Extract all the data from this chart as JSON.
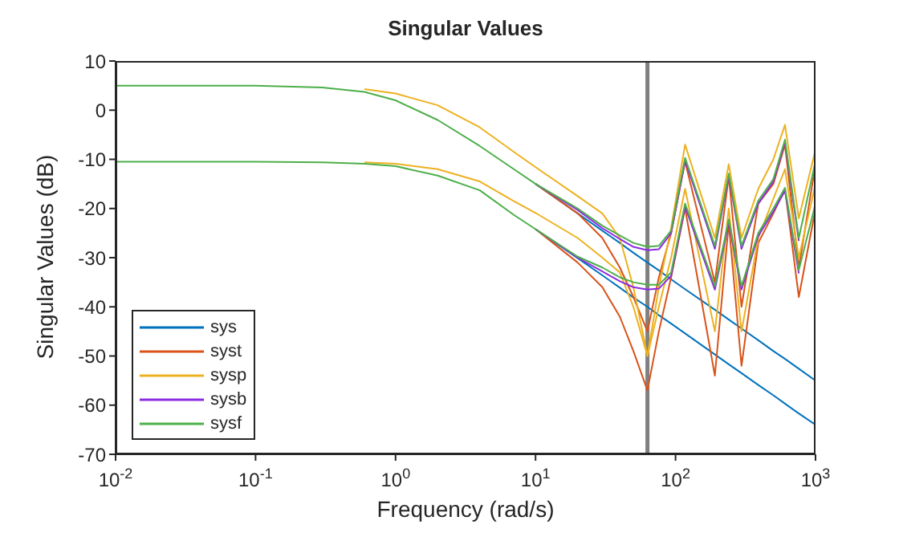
{
  "chart_data": {
    "type": "line",
    "title": "Singular Values",
    "xlabel": "Frequency (rad/s)",
    "ylabel": "Singular Values (dB)",
    "x": [
      0.01,
      0.1,
      0.3,
      0.6,
      1,
      2,
      4,
      7,
      10,
      20,
      30,
      40,
      50,
      63,
      76,
      93,
      117,
      191,
      240,
      296,
      390,
      500,
      605,
      760,
      1000
    ],
    "series": [
      {
        "name": "sys",
        "color": "#0072bd",
        "values": [
          null,
          null,
          null,
          null,
          null,
          null,
          null,
          null,
          -15,
          -21,
          -24.5,
          -27,
          -29,
          -31,
          -32.6,
          -34.4,
          -36.4,
          -40.6,
          -42.6,
          -44.4,
          -46.8,
          -49,
          -50.6,
          -52.6,
          -55
        ]
      },
      {
        "color": "#0072bd",
        "values": [
          null,
          null,
          null,
          null,
          null,
          null,
          null,
          null,
          -24.2,
          -30.1,
          -33.6,
          -36.1,
          -38.1,
          -40,
          -41.7,
          -43.4,
          -45.4,
          -49.7,
          -51.7,
          -53.5,
          -55.9,
          -58,
          -59.7,
          -61.7,
          -64
        ]
      },
      {
        "name": "syst",
        "color": "#d95319",
        "values": [
          null,
          null,
          null,
          null,
          null,
          null,
          null,
          null,
          -15,
          -21,
          -26,
          -32,
          -38,
          -45,
          -34,
          -25,
          -10.5,
          -35,
          -13.5,
          -40,
          -19,
          -15,
          -7,
          -32,
          -11
        ]
      },
      {
        "color": "#d95319",
        "values": [
          null,
          null,
          null,
          null,
          null,
          null,
          null,
          null,
          -24.2,
          -31,
          -36,
          -42,
          -49,
          -57,
          -45,
          -34,
          -20,
          -54,
          -23,
          -52,
          -27,
          -21,
          -16,
          -38,
          -20
        ]
      },
      {
        "name": "sysp",
        "color": "#edb120",
        "values": [
          null,
          null,
          null,
          4.3,
          3.4,
          1,
          -3.5,
          -8.5,
          -11.6,
          -17.5,
          -21,
          -26,
          -36,
          -50,
          -36,
          -24,
          -7,
          -26,
          -11,
          -26,
          -16,
          -10,
          -3,
          -22,
          -8
        ]
      },
      {
        "color": "#edb120",
        "values": [
          null,
          null,
          null,
          -10.6,
          -10.9,
          -12,
          -14.5,
          -18.5,
          -20.9,
          -26,
          -30,
          -33,
          -40,
          -50,
          -40,
          -30,
          -16,
          -45,
          -20,
          -45,
          -26,
          -18,
          -12,
          -30,
          -15
        ]
      },
      {
        "name": "sysb",
        "color": "#8c2be2",
        "values": [
          null,
          null,
          null,
          null,
          null,
          null,
          null,
          null,
          -15,
          -20.3,
          -24,
          -26.2,
          -27.8,
          -28.5,
          -28.3,
          -25,
          -10.2,
          -28.2,
          -13.4,
          -28.2,
          -19,
          -14.5,
          -6.5,
          -26.6,
          null
        ]
      },
      {
        "color": "#8c2be2",
        "values": [
          null,
          null,
          null,
          null,
          null,
          null,
          null,
          null,
          -24.2,
          -30,
          -32.8,
          -34.8,
          -36,
          -36.5,
          -36.3,
          -33.7,
          -19.6,
          -36.5,
          -22.8,
          -36.5,
          -25.6,
          -20.6,
          -16.4,
          -33.2,
          null
        ]
      },
      {
        "name": "sysf",
        "color": "#4daf4a",
        "values": [
          5,
          5,
          4.6,
          3.7,
          2,
          -2,
          -7.3,
          -12,
          -15,
          -20,
          -23.5,
          -25.5,
          -27,
          -27.8,
          -27.6,
          -24.5,
          -9.7,
          -27.6,
          -12.9,
          -27.6,
          -18.4,
          -14,
          -6,
          -26,
          -10.3
        ]
      },
      {
        "color": "#4daf4a",
        "values": [
          -10.5,
          -10.5,
          -10.6,
          -10.9,
          -11.4,
          -13.3,
          -16.3,
          -21.3,
          -24.2,
          -29.8,
          -32,
          -34,
          -35,
          -35.5,
          -35.5,
          -33,
          -19,
          -35.8,
          -22.2,
          -35.8,
          -25,
          -20,
          -15.8,
          -32.5,
          -19
        ]
      }
    ],
    "log": "x",
    "xlim": [
      0.01,
      1000
    ],
    "xticks": [
      {
        "value": 0.01,
        "label": "10$^{-2}$"
      },
      {
        "value": 0.1,
        "label": "10$^{-1}$"
      },
      {
        "value": 1,
        "label": "10$^{0}$"
      },
      {
        "value": 10,
        "label": "10$^{1}$"
      },
      {
        "value": 100,
        "label": "10$^{2}$"
      },
      {
        "value": 1000,
        "label": "10$^{3}$"
      }
    ],
    "ylim": [
      -70,
      10
    ],
    "yticks": [
      -70,
      -60,
      -50,
      -40,
      -30,
      -20,
      -10,
      0,
      10
    ],
    "ref_lines": [
      {
        "axis": "x",
        "value": 63,
        "color": "#808080"
      }
    ],
    "grid": false,
    "legend": "bottom left",
    "marker": "none",
    "line_style": "solid"
  }
}
